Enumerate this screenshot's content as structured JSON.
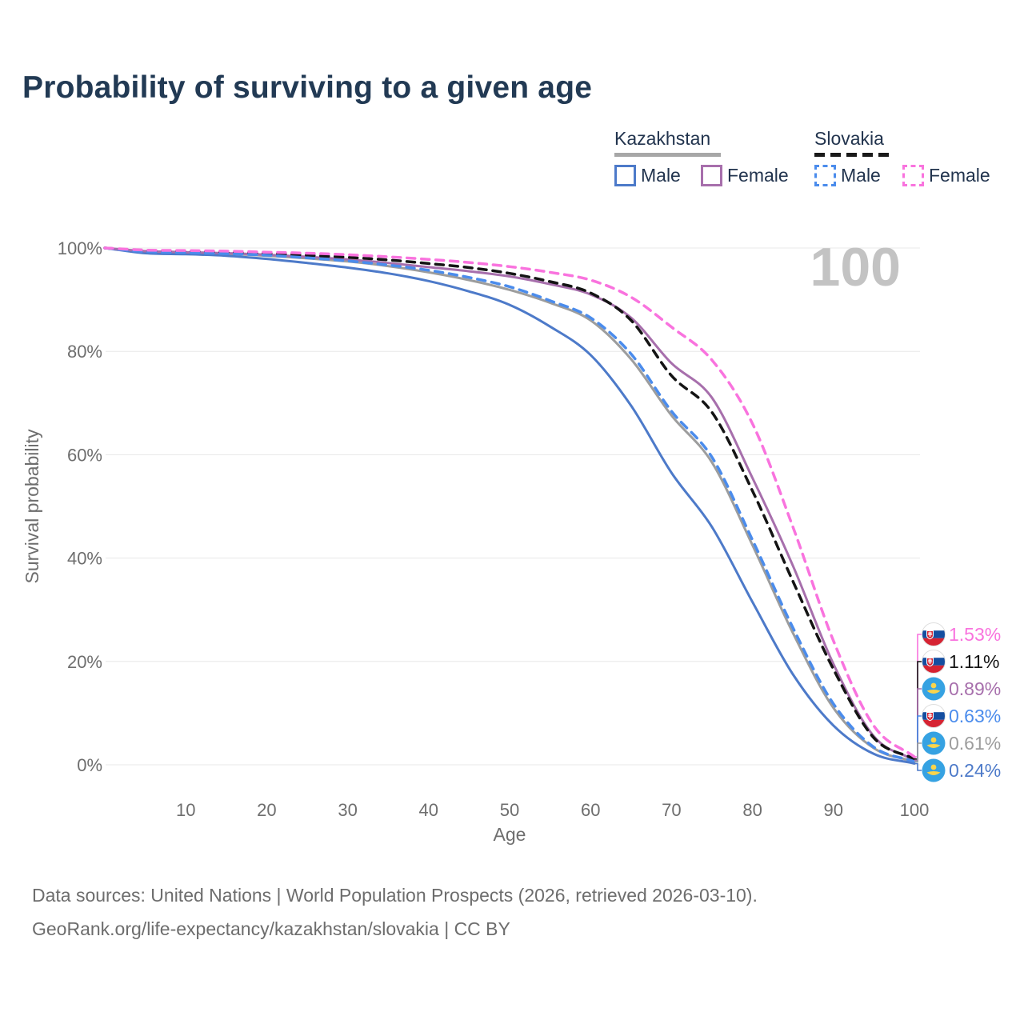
{
  "title": "Probability of surviving to a given age",
  "watermark": "100",
  "legend": {
    "groups": [
      {
        "label": "Kazakhstan",
        "line_style": "solid",
        "underline_color": "#a7a7a7",
        "items": [
          {
            "label": "Male",
            "color": "#4d7ac9"
          },
          {
            "label": "Female",
            "color": "#a76fac"
          }
        ]
      },
      {
        "label": "Slovakia",
        "line_style": "dashed",
        "underline_color": "#1a1a1a",
        "items": [
          {
            "label": "Male",
            "color": "#4b8cec"
          },
          {
            "label": "Female",
            "color": "#f973de"
          }
        ]
      }
    ]
  },
  "chart_data": {
    "type": "line",
    "title": "Probability of surviving to a given age",
    "xlabel": "Age",
    "ylabel": "Survival probability",
    "xlim": [
      0,
      100
    ],
    "ylim": [
      0,
      100
    ],
    "x_ticks": [
      10,
      20,
      30,
      40,
      50,
      60,
      70,
      80,
      90,
      100
    ],
    "y_ticks": [
      0,
      20,
      40,
      60,
      80,
      100
    ],
    "y_tick_suffix": "%",
    "grid": "horizontal",
    "annotation_age": "100",
    "ages": [
      0,
      5,
      10,
      15,
      20,
      25,
      30,
      35,
      40,
      45,
      50,
      55,
      60,
      65,
      70,
      75,
      80,
      85,
      90,
      95,
      100
    ],
    "series": [
      {
        "name": "Kazakhstan",
        "country": "Kazakhstan",
        "sex": "All",
        "flag": "kazakhstan",
        "color": "#9d9d9d",
        "dash": "solid",
        "end_label": "0.61%",
        "values": [
          100,
          99.2,
          99.1,
          98.9,
          98.5,
          98.0,
          97.4,
          96.5,
          95.3,
          93.8,
          91.9,
          89.4,
          86.0,
          78.5,
          67.6,
          58.5,
          42.5,
          25.5,
          11.0,
          3.2,
          0.61
        ]
      },
      {
        "name": "Kazakhstan Male",
        "country": "Kazakhstan",
        "sex": "Male",
        "flag": "kazakhstan",
        "color": "#4d7ac9",
        "dash": "solid",
        "end_label": "0.24%",
        "values": [
          100,
          99.0,
          98.8,
          98.5,
          97.9,
          97.1,
          96.2,
          95.1,
          93.6,
          91.6,
          89.0,
          84.8,
          79.3,
          69.5,
          56.5,
          46.0,
          31.5,
          17.5,
          7.6,
          2.1,
          0.24
        ]
      },
      {
        "name": "Kazakhstan Female",
        "country": "Kazakhstan",
        "sex": "Female",
        "flag": "kazakhstan",
        "color": "#a76fac",
        "dash": "solid",
        "end_label": "0.89%",
        "values": [
          100,
          99.4,
          99.2,
          99.0,
          98.7,
          98.3,
          97.8,
          97.1,
          96.3,
          95.5,
          94.5,
          93.0,
          91.0,
          86.5,
          77.7,
          71.0,
          55.5,
          38.5,
          19.5,
          5.5,
          0.89
        ]
      },
      {
        "name": "Slovakia",
        "country": "Slovakia",
        "sex": "All",
        "flag": "slovakia",
        "color": "#141414",
        "dash": "dashed",
        "end_label": "1.11%",
        "values": [
          100,
          99.5,
          99.4,
          99.2,
          99.0,
          98.6,
          98.2,
          97.7,
          97.0,
          96.2,
          95.1,
          93.5,
          91.3,
          86.0,
          75.3,
          68.2,
          53.0,
          35.5,
          18.5,
          5.2,
          1.11
        ]
      },
      {
        "name": "Slovakia Male",
        "country": "Slovakia",
        "sex": "Male",
        "flag": "slovakia",
        "color": "#4b8cec",
        "dash": "dashed",
        "end_label": "0.63%",
        "values": [
          100,
          99.3,
          99.1,
          98.9,
          98.6,
          98.1,
          97.5,
          96.7,
          95.7,
          94.3,
          92.5,
          89.8,
          86.5,
          79.5,
          68.4,
          59.5,
          43.5,
          26.5,
          11.8,
          3.4,
          0.63
        ]
      },
      {
        "name": "Slovakia Female",
        "country": "Slovakia",
        "sex": "Female",
        "flag": "slovakia",
        "color": "#f973de",
        "dash": "dashed",
        "end_label": "1.53%",
        "values": [
          100,
          99.6,
          99.5,
          99.4,
          99.2,
          99.0,
          98.7,
          98.3,
          97.8,
          97.2,
          96.4,
          95.3,
          93.8,
          90.5,
          84.7,
          78.3,
          66.0,
          46.0,
          24.0,
          7.5,
          1.53
        ]
      }
    ]
  },
  "footer": {
    "line1": "Data sources: United Nations | World Population Prospects (2026, retrieved 2026-03-10).",
    "line2": "GeoRank.org/life-expectancy/kazakhstan/slovakia | CC BY"
  }
}
